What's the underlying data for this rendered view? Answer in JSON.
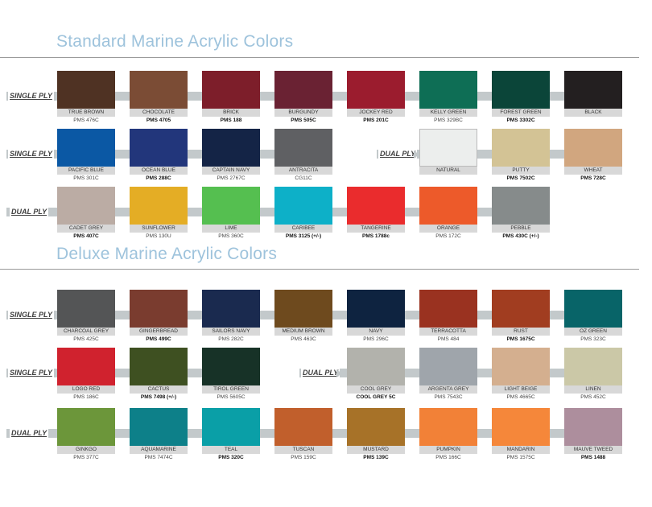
{
  "standard": {
    "title": "Standard Marine Acrylic Colors",
    "rows": [
      {
        "label": "SINGLE PLY",
        "swatches": [
          {
            "name": "TRUE BROWN",
            "code": "PMS 476C",
            "color": "#4f3223",
            "bold": false
          },
          {
            "name": "CHOCOLATE",
            "code": "PMS 4705",
            "color": "#7b4c35",
            "bold": true
          },
          {
            "name": "BRICK",
            "code": "PMS 188",
            "color": "#7d1e2a",
            "bold": true
          },
          {
            "name": "BURGUNDY",
            "code": "PMS 505C",
            "color": "#6a2233",
            "bold": true
          },
          {
            "name": "JOCKEY RED",
            "code": "PMS 201C",
            "color": "#9b1c2e",
            "bold": true
          },
          {
            "name": "KELLY GREEN",
            "code": "PMS 329BC",
            "color": "#0e6e55",
            "bold": false
          },
          {
            "name": "FOREST GREEN",
            "code": "PMS 3302C",
            "color": "#0b4539",
            "bold": true
          },
          {
            "name": "BLACK",
            "code": "",
            "color": "#231f20",
            "bold": false
          }
        ]
      },
      {
        "label": "SINGLE PLY",
        "swatches": [
          {
            "name": "PACIFIC BLUE",
            "code": "PMS 301C",
            "color": "#0b58a4",
            "bold": false
          },
          {
            "name": "OCEAN BLUE",
            "code": "PMS 288C",
            "color": "#22367b",
            "bold": true
          },
          {
            "name": "CAPTAIN NAVY",
            "code": "PMS 2767C",
            "color": "#142446",
            "bold": false
          },
          {
            "name": "ANTRACITA",
            "code": "CG11C",
            "color": "#5f6063",
            "bold": false
          }
        ]
      },
      {
        "label": "DUAL PLY",
        "swatches": [
          {
            "name": "NATURAL",
            "code": "",
            "color": "#eceeed",
            "bold": false
          },
          {
            "name": "PUTTY",
            "code": "PMS 7502C",
            "color": "#d3c395",
            "bold": true
          },
          {
            "name": "WHEAT",
            "code": "PMS 728C",
            "color": "#d1a67f",
            "bold": true
          }
        ]
      },
      {
        "label": "DUAL PLY",
        "swatches": [
          {
            "name": "CADET GREY",
            "code": "PMS 407C",
            "color": "#bbaca4",
            "bold": true
          },
          {
            "name": "SUNFLOWER",
            "code": "PMS 130U",
            "color": "#e4ad25",
            "bold": false
          },
          {
            "name": "LIME",
            "code": "PMS 360C",
            "color": "#55bf50",
            "bold": false
          },
          {
            "name": "Caribee",
            "code": "PMS 3125 (+/-)",
            "color": "#0db0c8",
            "bold": true
          },
          {
            "name": "Tangerine",
            "code": "PMS 1788c",
            "color": "#ea2c2d",
            "bold": true
          },
          {
            "name": "ORANGE",
            "code": "PMS 172C",
            "color": "#ed5a2a",
            "bold": false
          },
          {
            "name": "PEBBLE",
            "code": "PMS 430C (+/-)",
            "color": "#868b8b",
            "bold": true
          }
        ]
      }
    ]
  },
  "deluxe": {
    "title": "Deluxe Marine Acrylic Colors",
    "rows": [
      {
        "label": "SINGLE PLY",
        "swatches": [
          {
            "name": "CHARCOAL GREY",
            "code": "PMS 425C",
            "color": "#545556",
            "bold": false
          },
          {
            "name": "GINGERBREAD",
            "code": "PMS 499C",
            "color": "#7a3c2f",
            "bold": true
          },
          {
            "name": "SAILORS NAVY",
            "code": "PMS 282C",
            "color": "#1a2a4f",
            "bold": false
          },
          {
            "name": "MEDIUM BROWN",
            "code": "PMS 463C",
            "color": "#6e4a1e",
            "bold": false
          },
          {
            "name": "NAVY",
            "code": "PMS 296C",
            "color": "#0e2340",
            "bold": false
          },
          {
            "name": "TERRACOTTA",
            "code": "PMS 484",
            "color": "#9a3220",
            "bold": false
          },
          {
            "name": "RUST",
            "code": "PMS 1675C",
            "color": "#a13d20",
            "bold": true
          },
          {
            "name": "OZ GREEN",
            "code": "PMS 323C",
            "color": "#086468",
            "bold": false
          }
        ]
      },
      {
        "label": "SINGLE PLY",
        "swatches": [
          {
            "name": "LOGO RED",
            "code": "PMS 186C",
            "color": "#d0222e",
            "bold": false
          },
          {
            "name": "CACTUS",
            "code": "PMS 7498 (+/-)",
            "color": "#3e5021",
            "bold": true
          },
          {
            "name": "TIROL GREEN",
            "code": "PMS 5605C",
            "color": "#173227",
            "bold": false
          }
        ]
      },
      {
        "label": "DUAL PLY",
        "swatches": [
          {
            "name": "COOL GREY",
            "code": "COOL GREY 5C",
            "color": "#b2b2ac",
            "bold": true
          },
          {
            "name": "ARGENTA GREY",
            "code": "PMS 7543C",
            "color": "#9fa5ab",
            "bold": false
          },
          {
            "name": "LIGHT BEIGE",
            "code": "PMS 4665C",
            "color": "#d4af8f",
            "bold": false
          },
          {
            "name": "LINEN",
            "code": "PMS 452C",
            "color": "#cbc8a7",
            "bold": false
          }
        ]
      },
      {
        "label": "DUAL PLY",
        "swatches": [
          {
            "name": "GINKGO",
            "code": "PMS 377C",
            "color": "#6c963a",
            "bold": false
          },
          {
            "name": "AQUAMARINE",
            "code": "PMS 7474C",
            "color": "#0d8089",
            "bold": false
          },
          {
            "name": "TEAL",
            "code": "PMS 320C",
            "color": "#0a9fa7",
            "bold": true
          },
          {
            "name": "TUSCAN",
            "code": "PMS 159C",
            "color": "#c15f2c",
            "bold": false
          },
          {
            "name": "MUSTARD",
            "code": "PMS 139C",
            "color": "#a77228",
            "bold": true
          },
          {
            "name": "PUMPKIN",
            "code": "PMS 166C",
            "color": "#f28137",
            "bold": false
          },
          {
            "name": "MANDARIN",
            "code": "PMS 1575C",
            "color": "#f5873a",
            "bold": false
          },
          {
            "name": "MAUVE TWEED",
            "code": "PMS 1488",
            "color": "#ad8e9d",
            "bold": true
          }
        ]
      }
    ]
  }
}
